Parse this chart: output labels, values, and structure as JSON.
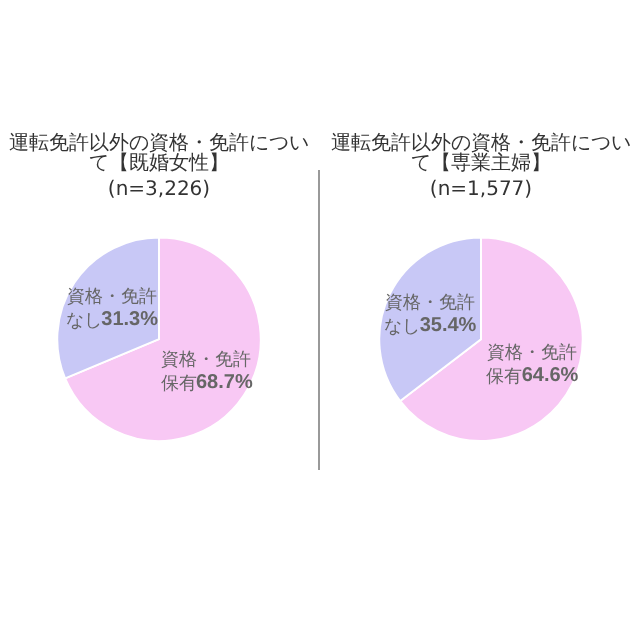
{
  "chart_data": [
    {
      "type": "pie",
      "title": "運転免許以外の資格・免許について【既婚女性】",
      "subtitle": "(n=3,226)",
      "categories": [
        "資格・免許保有",
        "資格・免許なし"
      ],
      "values": [
        68.7,
        31.3
      ],
      "value_labels": [
        "68.7%",
        "31.3%"
      ],
      "colors": [
        "#f8c8f4",
        "#c8c8f6"
      ]
    },
    {
      "type": "pie",
      "title": "運転免許以外の資格・免許について【専業主婦】",
      "subtitle": "(n=1,577)",
      "categories": [
        "資格・免許保有",
        "資格・免許なし"
      ],
      "values": [
        64.6,
        35.4
      ],
      "value_labels": [
        "64.6%",
        "35.4%"
      ],
      "colors": [
        "#f8c8f4",
        "#c8c8f6"
      ]
    }
  ]
}
